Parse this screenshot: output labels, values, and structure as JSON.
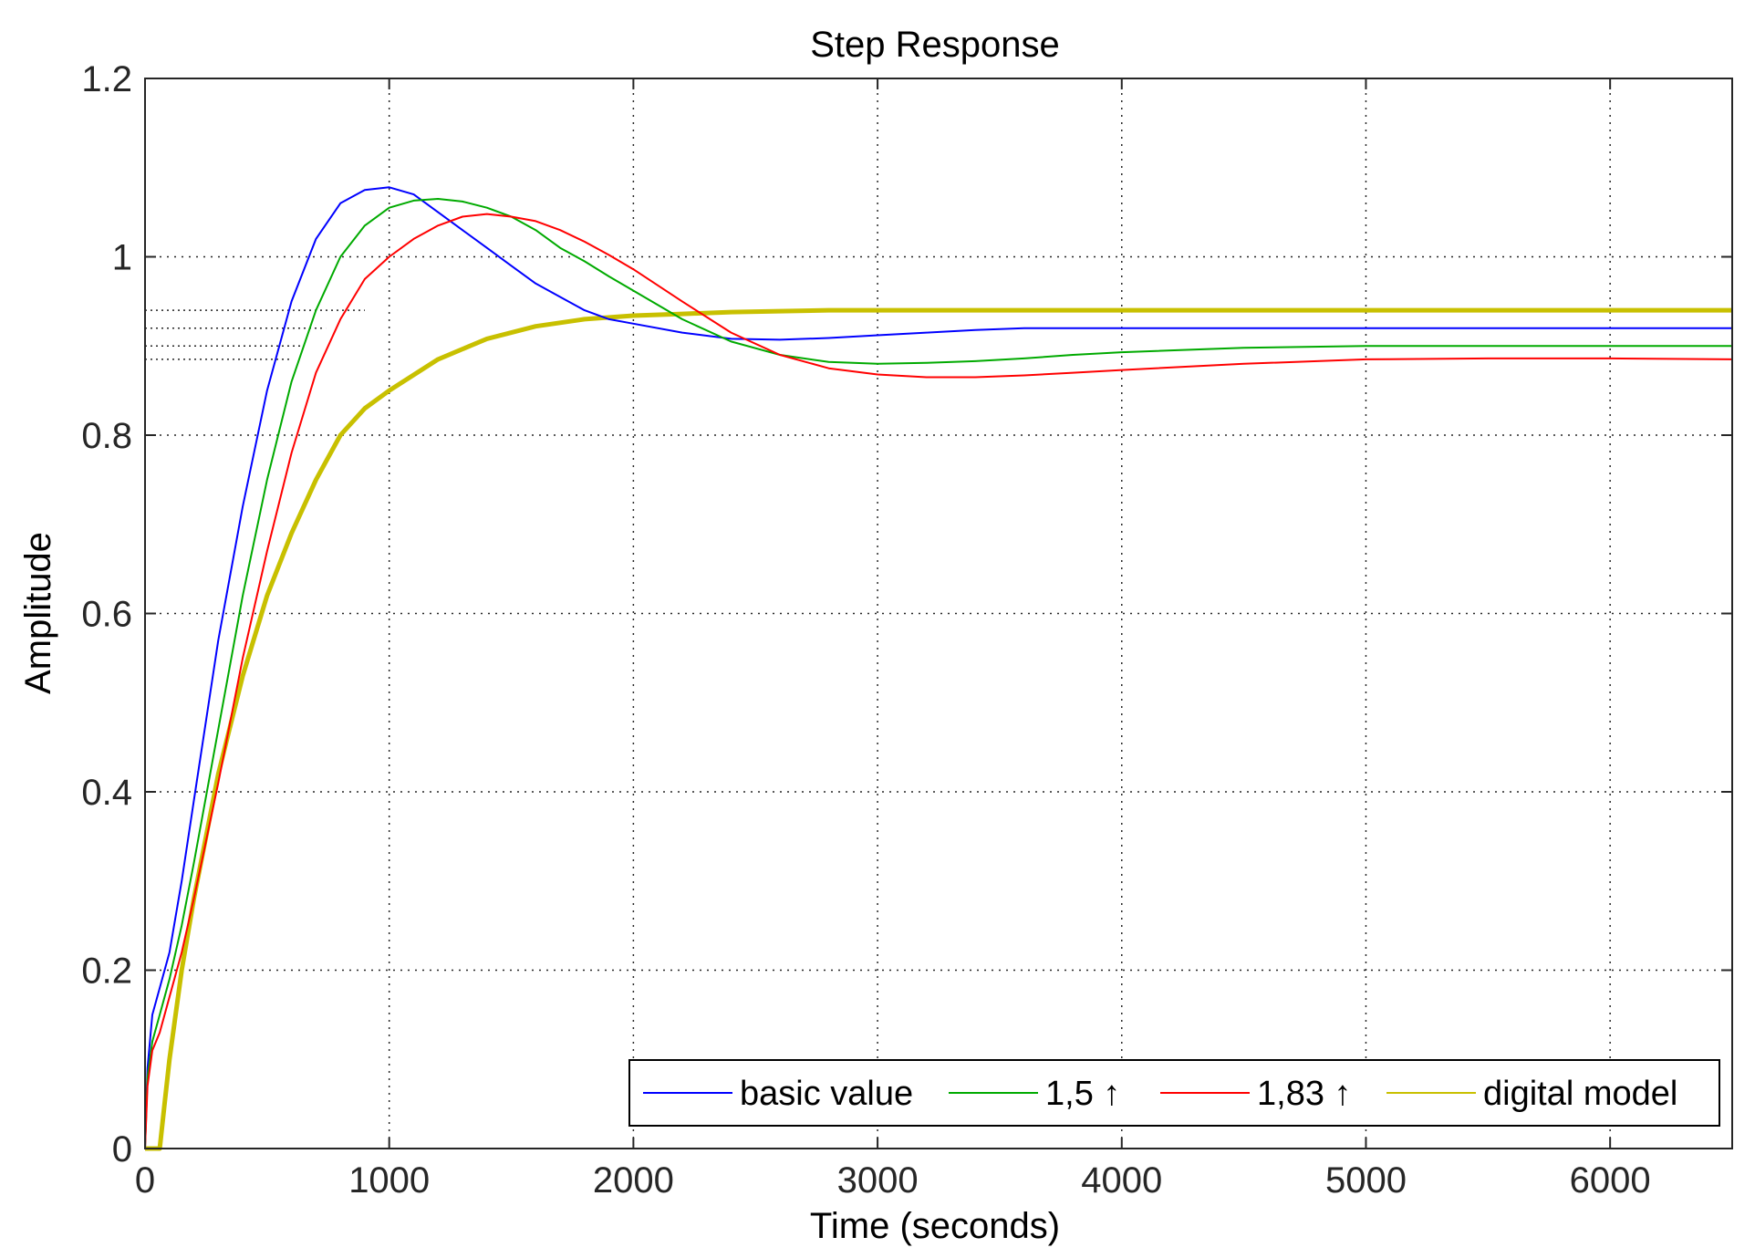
{
  "chart_data": {
    "type": "line",
    "title": "Step Response",
    "xlabel": "Time (seconds)",
    "ylabel": "Amplitude",
    "xlim": [
      0,
      6500
    ],
    "ylim": [
      0,
      1.2
    ],
    "grid": true,
    "x_ticks": [
      0,
      1000,
      2000,
      3000,
      4000,
      5000,
      6000
    ],
    "x_tick_labels": [
      "0",
      "1000",
      "2000",
      "3000",
      "4000",
      "5000",
      "6000"
    ],
    "y_ticks": [
      0,
      0.2,
      0.4,
      0.6,
      0.8,
      1.0,
      1.2
    ],
    "y_tick_labels": [
      "0",
      "0.2",
      "0.4",
      "0.6",
      "0.8",
      "1",
      "1.2"
    ],
    "legend_position": "bottom-right",
    "steady_state_lines": [
      0.94,
      0.92,
      0.9,
      0.885
    ],
    "series": [
      {
        "name": "basic value",
        "color": "#0000ff",
        "width": 2,
        "x": [
          0,
          10,
          30,
          60,
          100,
          150,
          200,
          300,
          400,
          500,
          600,
          700,
          800,
          900,
          1000,
          1100,
          1200,
          1300,
          1400,
          1500,
          1600,
          1700,
          1800,
          1900,
          2000,
          2200,
          2400,
          2600,
          2800,
          3000,
          3200,
          3400,
          3600,
          3800,
          4000,
          4500,
          5000,
          5500,
          6000,
          6500
        ],
        "y": [
          0.0,
          0.09,
          0.15,
          0.18,
          0.22,
          0.3,
          0.39,
          0.57,
          0.72,
          0.85,
          0.95,
          1.02,
          1.06,
          1.075,
          1.078,
          1.07,
          1.05,
          1.03,
          1.01,
          0.99,
          0.97,
          0.955,
          0.94,
          0.93,
          0.925,
          0.915,
          0.908,
          0.907,
          0.909,
          0.912,
          0.915,
          0.918,
          0.92,
          0.92,
          0.92,
          0.92,
          0.92,
          0.92,
          0.92,
          0.92
        ]
      },
      {
        "name": "1,5 ↑",
        "color": "#00aa00",
        "width": 2,
        "x": [
          0,
          10,
          30,
          60,
          100,
          150,
          200,
          300,
          400,
          500,
          600,
          700,
          800,
          900,
          1000,
          1100,
          1200,
          1300,
          1400,
          1500,
          1600,
          1700,
          1800,
          1900,
          2000,
          2200,
          2400,
          2600,
          2800,
          3000,
          3200,
          3400,
          3600,
          3800,
          4000,
          4500,
          5000,
          5500,
          6000,
          6500
        ],
        "y": [
          0.0,
          0.08,
          0.12,
          0.15,
          0.19,
          0.25,
          0.32,
          0.47,
          0.62,
          0.75,
          0.86,
          0.94,
          1.0,
          1.035,
          1.055,
          1.063,
          1.065,
          1.062,
          1.055,
          1.045,
          1.03,
          1.01,
          0.995,
          0.978,
          0.962,
          0.93,
          0.905,
          0.89,
          0.882,
          0.88,
          0.881,
          0.883,
          0.886,
          0.89,
          0.893,
          0.898,
          0.9,
          0.9,
          0.9,
          0.9
        ]
      },
      {
        "name": "1,83 ↑",
        "color": "#ff0000",
        "width": 2,
        "x": [
          0,
          10,
          30,
          60,
          100,
          150,
          200,
          300,
          400,
          500,
          600,
          700,
          800,
          900,
          1000,
          1100,
          1200,
          1300,
          1400,
          1500,
          1600,
          1700,
          1800,
          1900,
          2000,
          2200,
          2400,
          2600,
          2800,
          3000,
          3200,
          3400,
          3600,
          3800,
          4000,
          4500,
          5000,
          5500,
          6000,
          6500
        ],
        "y": [
          0.0,
          0.07,
          0.11,
          0.13,
          0.17,
          0.22,
          0.28,
          0.41,
          0.55,
          0.67,
          0.78,
          0.87,
          0.93,
          0.975,
          1.0,
          1.02,
          1.035,
          1.045,
          1.048,
          1.045,
          1.04,
          1.03,
          1.017,
          1.002,
          0.986,
          0.95,
          0.915,
          0.89,
          0.875,
          0.868,
          0.865,
          0.865,
          0.867,
          0.87,
          0.873,
          0.88,
          0.885,
          0.886,
          0.886,
          0.885
        ]
      },
      {
        "name": "digital model",
        "color": "#c8c000",
        "width": 5,
        "x": [
          0,
          40,
          60,
          80,
          100,
          150,
          200,
          300,
          400,
          500,
          600,
          700,
          800,
          900,
          1000,
          1200,
          1400,
          1600,
          1800,
          2000,
          2200,
          2400,
          2600,
          2800,
          3000,
          3200,
          3490,
          4000,
          5000,
          6000,
          6500
        ],
        "y": [
          0.0,
          0.0,
          0.0,
          0.05,
          0.1,
          0.2,
          0.28,
          0.42,
          0.53,
          0.62,
          0.69,
          0.75,
          0.8,
          0.83,
          0.85,
          0.885,
          0.908,
          0.922,
          0.93,
          0.934,
          0.936,
          0.938,
          0.939,
          0.94,
          0.94,
          0.94,
          0.94,
          0.94,
          0.94,
          0.94,
          0.94
        ]
      }
    ]
  }
}
